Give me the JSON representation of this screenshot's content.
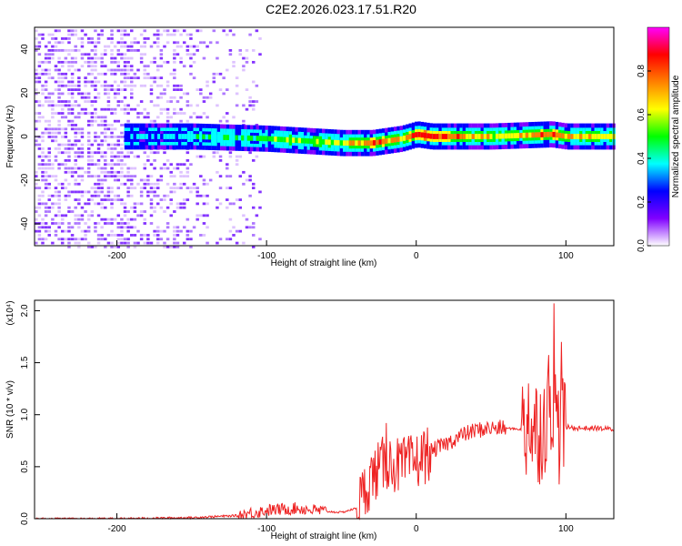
{
  "title": "C2E2.2026.023.17.51.R20",
  "chart_data": [
    {
      "type": "heatmap",
      "xlabel": "Height of straight line (km)",
      "ylabel": "Frequency (Hz)",
      "xlim": [
        -255,
        132
      ],
      "ylim": [
        -50,
        50
      ],
      "x_ticks": [
        -200,
        -100,
        0,
        100
      ],
      "y_ticks": [
        -40,
        -20,
        0,
        20,
        40
      ],
      "colorbar": {
        "label": "Normalized spectral amplitude",
        "range": [
          0,
          1
        ],
        "ticks": [
          "0.0",
          "0.2",
          "0.4",
          "0.6",
          "0.8"
        ],
        "colors": [
          "#ffffff",
          "#8000ff",
          "#0000ff",
          "#00ffff",
          "#00ff00",
          "#ffff00",
          "#ff8000",
          "#ff0000",
          "#ff00ff"
        ]
      },
      "ridge": {
        "x": [
          -195,
          -150,
          -100,
          -50,
          -30,
          -10,
          0,
          10,
          50,
          90,
          100,
          132
        ],
        "freq": [
          0,
          0,
          -1,
          -3,
          -3,
          -1,
          1,
          0,
          0,
          1,
          0,
          0
        ],
        "amplitude": [
          0.3,
          0.4,
          0.5,
          0.6,
          0.8,
          0.7,
          0.9,
          0.9,
          0.6,
          0.8,
          0.7,
          0.6
        ]
      }
    },
    {
      "type": "line",
      "xlabel": "Height of straight line (km)",
      "ylabel": "SNR (10 * v/v)",
      "y_multiplier": "(x10⁴)",
      "xlim": [
        -255,
        132
      ],
      "ylim": [
        0,
        2.1
      ],
      "x_ticks": [
        -200,
        -100,
        0,
        100
      ],
      "y_ticks": [
        "0.0",
        "0.5",
        "1.0",
        "1.5",
        "2.0"
      ],
      "line_color": "#ee2222",
      "series": [
        {
          "x": [
            -255,
            -200,
            -150,
            -120,
            -100,
            -80,
            -60,
            -50,
            -40,
            -30,
            -20,
            -10,
            0,
            10,
            20,
            30,
            40,
            50,
            60,
            70,
            75,
            80,
            85,
            90,
            95,
            100,
            110,
            120,
            132
          ],
          "values": [
            0.0,
            0.0,
            0.01,
            0.03,
            0.08,
            0.1,
            0.07,
            0.06,
            0.1,
            0.4,
            0.55,
            0.5,
            0.55,
            0.65,
            0.72,
            0.8,
            0.85,
            0.87,
            0.87,
            0.86,
            0.8,
            0.85,
            0.9,
            1.2,
            0.85,
            0.88,
            0.87,
            0.87,
            0.86
          ],
          "spikes": [
            {
              "x": -20,
              "value": 0.92
            },
            {
              "x": 75,
              "value": 1.3
            },
            {
              "x": 88,
              "value": 1.42
            },
            {
              "x": 92,
              "value": 2.07
            },
            {
              "x": 97,
              "value": 1.7
            }
          ]
        }
      ]
    }
  ]
}
